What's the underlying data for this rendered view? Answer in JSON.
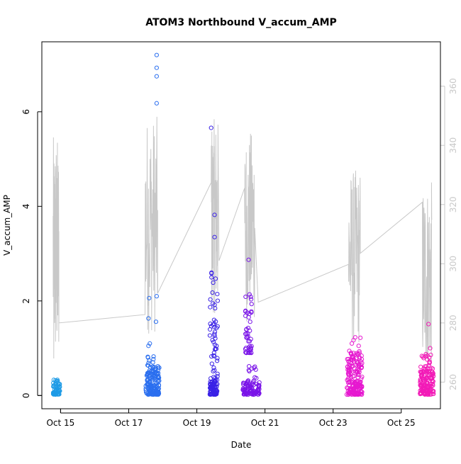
{
  "chart_data": {
    "type": "scatter",
    "title": "ATOM3 Northbound V_accum_AMP",
    "xlabel": "Date",
    "ylabel": "V_accum_AMP",
    "y2label": "",
    "x_ticks": [
      "Oct 15",
      "Oct 17",
      "Oct 19",
      "Oct 21",
      "Oct 23",
      "Oct 25"
    ],
    "x_tick_days": [
      15,
      17,
      19,
      21,
      23,
      25
    ],
    "xlim": [
      14.45,
      26.15
    ],
    "y_ticks": [
      0,
      2,
      4,
      6
    ],
    "ylim": [
      -0.28,
      7.48
    ],
    "y2_ticks": [
      260,
      280,
      300,
      320,
      340,
      360
    ],
    "y2lim": [
      251,
      375
    ],
    "grid": false,
    "legend": "none",
    "colors": {
      "line": "#c8c8c8",
      "axis": "#000000",
      "right_axis": "#c8c8c8"
    },
    "series": [
      {
        "color": "#1E9BE6",
        "clusters": [
          {
            "x_range": [
              14.78,
              14.98
            ],
            "y_range": [
              0.02,
              0.34
            ],
            "count": 60
          }
        ],
        "points": []
      },
      {
        "color": "#2B6FEF",
        "clusters": [
          {
            "x_range": [
              17.5,
              17.9
            ],
            "y_range": [
              0.02,
              0.62
            ],
            "count": 160
          },
          {
            "x_range": [
              17.55,
              17.85
            ],
            "y_range": [
              0.6,
              0.85
            ],
            "count": 10
          }
        ],
        "points": [
          [
            17.82,
            7.2
          ],
          [
            17.82,
            6.93
          ],
          [
            17.82,
            6.75
          ],
          [
            17.82,
            6.18
          ],
          [
            17.6,
            2.06
          ],
          [
            17.82,
            2.1
          ],
          [
            17.8,
            1.56
          ],
          [
            17.58,
            1.63
          ],
          [
            17.62,
            1.1
          ],
          [
            17.58,
            1.05
          ]
        ]
      },
      {
        "color": "#3A22E6",
        "clusters": [
          {
            "x_range": [
              19.38,
              19.6
            ],
            "y_range": [
              0.02,
              0.35
            ],
            "count": 80
          },
          {
            "x_range": [
              19.38,
              19.62
            ],
            "y_range": [
              0.35,
              2.7
            ],
            "count": 50
          }
        ],
        "points": [
          [
            19.42,
            5.66
          ],
          [
            19.52,
            3.82
          ],
          [
            19.52,
            3.35
          ]
        ]
      },
      {
        "color": "#7A14E8",
        "clusters": [
          {
            "x_range": [
              20.35,
              20.85
            ],
            "y_range": [
              0.02,
              0.3
            ],
            "count": 90
          },
          {
            "x_range": [
              20.42,
              20.62
            ],
            "y_range": [
              0.9,
              2.2
            ],
            "count": 45
          },
          {
            "x_range": [
              20.45,
              20.75
            ],
            "y_range": [
              0.3,
              0.62
            ],
            "count": 12
          }
        ],
        "points": [
          [
            20.52,
            2.87
          ]
        ]
      },
      {
        "color": "#E619D0",
        "clusters": [
          {
            "x_range": [
              23.4,
              23.85
            ],
            "y_range": [
              0.02,
              0.95
            ],
            "count": 190
          }
        ],
        "points": [
          [
            23.65,
            1.23
          ],
          [
            23.8,
            1.22
          ],
          [
            23.6,
            1.17
          ],
          [
            23.55,
            1.1
          ],
          [
            23.75,
            1.05
          ]
        ]
      },
      {
        "color": "#F21BB7",
        "clusters": [
          {
            "x_range": [
              25.55,
              25.95
            ],
            "y_range": [
              0.02,
              0.62
            ],
            "count": 140
          },
          {
            "x_range": [
              25.6,
              25.9
            ],
            "y_range": [
              0.6,
              1.1
            ],
            "count": 15
          }
        ],
        "points": [
          [
            25.8,
            1.51
          ]
        ]
      }
    ],
    "line_series": {
      "axis": "right",
      "trend": [
        [
          14.8,
          268
        ],
        [
          14.95,
          280
        ],
        [
          17.5,
          294
        ],
        [
          17.85,
          290
        ],
        [
          19.45,
          298
        ],
        [
          19.65,
          301
        ],
        [
          20.45,
          313
        ],
        [
          20.8,
          287
        ],
        [
          23.5,
          301
        ],
        [
          23.75,
          303
        ],
        [
          25.65,
          305
        ]
      ],
      "bursts": [
        {
          "x_range": [
            14.78,
            14.95
          ],
          "low": 265,
          "high": 343
        },
        {
          "x_range": [
            17.48,
            17.85
          ],
          "low": 276,
          "high": 350
        },
        {
          "x_range": [
            19.42,
            19.62
          ],
          "low": 283,
          "high": 349
        },
        {
          "x_range": [
            20.4,
            20.7
          ],
          "low": 280,
          "high": 345
        },
        {
          "x_range": [
            23.45,
            23.8
          ],
          "low": 272,
          "high": 332
        },
        {
          "x_range": [
            25.62,
            25.9
          ],
          "low": 264,
          "high": 328
        }
      ]
    }
  }
}
